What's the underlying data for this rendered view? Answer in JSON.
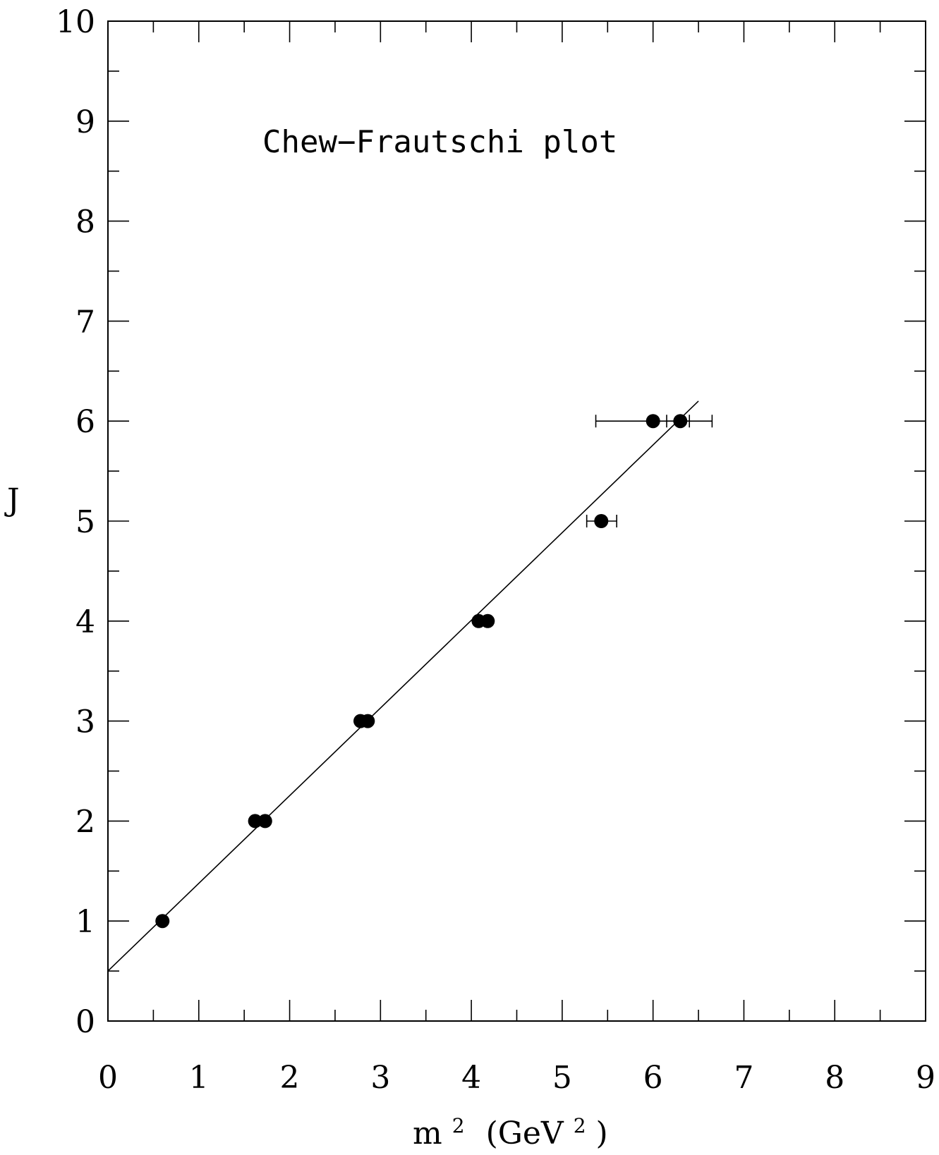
{
  "chart_data": {
    "type": "scatter",
    "title": "Chew−Frautschi plot",
    "xlabel_base": "m",
    "xlabel_sup": "2",
    "xlabel_unit_open": "(GeV",
    "xlabel_unit_sup": "2",
    "xlabel_unit_close": ")",
    "ylabel": "J",
    "xlim": [
      0,
      9
    ],
    "ylim": [
      0,
      10
    ],
    "xticks": [
      0,
      1,
      2,
      3,
      4,
      5,
      6,
      7,
      8,
      9
    ],
    "yticks": [
      0,
      1,
      2,
      3,
      4,
      5,
      6,
      7,
      8,
      9,
      10
    ],
    "x_minor_step": 0.5,
    "y_minor_step": 0.5,
    "grid": false,
    "points": [
      {
        "x": 0.6,
        "y": 1
      },
      {
        "x": 1.62,
        "y": 2
      },
      {
        "x": 1.73,
        "y": 2
      },
      {
        "x": 2.78,
        "y": 3
      },
      {
        "x": 2.86,
        "y": 3
      },
      {
        "x": 4.08,
        "y": 4
      },
      {
        "x": 4.18,
        "y": 4
      },
      {
        "x": 5.43,
        "y": 5,
        "xerr": [
          5.27,
          5.6
        ]
      },
      {
        "x": 6.0,
        "y": 6,
        "xerr": [
          5.37,
          6.4
        ]
      },
      {
        "x": 6.3,
        "y": 6,
        "xerr": [
          6.15,
          6.65
        ]
      }
    ],
    "fit_line": {
      "x": [
        0,
        6.5
      ],
      "y": [
        0.5,
        6.2
      ]
    }
  }
}
